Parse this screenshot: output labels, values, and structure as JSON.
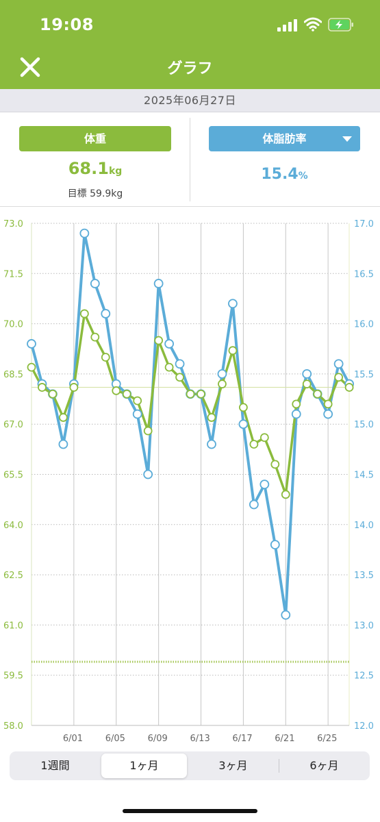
{
  "status": {
    "time": "19:08"
  },
  "nav": {
    "title": "グラフ"
  },
  "date": "2025年06月27日",
  "weight": {
    "label": "体重",
    "value": "68.1",
    "unit": "kg",
    "goal": "目標 59.9kg"
  },
  "body_fat": {
    "label": "体脂肪率",
    "value": "15.4",
    "unit": "%"
  },
  "colors": {
    "green": "#8bbb3d",
    "blue": "#5bacd8"
  },
  "tabs": [
    {
      "label": "1週間",
      "active": false
    },
    {
      "label": "1ヶ月",
      "active": true
    },
    {
      "label": "3ヶ月",
      "active": false
    },
    {
      "label": "6ヶ月",
      "active": false
    }
  ],
  "chart_data": {
    "type": "line",
    "x_tick_labels": [
      "6/01",
      "6/05",
      "6/09",
      "6/13",
      "6/17",
      "6/21",
      "6/25"
    ],
    "left_axis": {
      "ticks": [
        "73.0",
        "71.5",
        "70.0",
        "68.5",
        "67.0",
        "65.5",
        "64.0",
        "62.5",
        "61.0",
        "59.5",
        "58.0"
      ],
      "ylim": [
        58.0,
        73.0
      ]
    },
    "right_axis": {
      "ticks": [
        "17.0",
        "16.5",
        "16.0",
        "15.5",
        "15.0",
        "14.5",
        "14.0",
        "13.5",
        "13.0",
        "12.5",
        "12.0"
      ],
      "ylim": [
        12.0,
        17.0
      ]
    },
    "x_days": [
      28,
      29,
      30,
      31,
      32,
      33,
      34,
      35,
      36,
      37,
      38,
      39,
      40,
      41,
      42,
      43,
      44,
      45,
      46,
      47,
      48,
      49,
      50,
      51,
      52,
      53,
      54,
      55,
      56,
      57,
      58
    ],
    "series": [
      {
        "color": "#8bbb3d",
        "axis": "left",
        "values": [
          68.7,
          68.1,
          67.9,
          67.2,
          68.1,
          70.3,
          69.6,
          69.0,
          68.0,
          67.9,
          67.7,
          66.8,
          69.5,
          68.7,
          68.4,
          67.9,
          67.9,
          67.2,
          68.2,
          69.2,
          67.5,
          66.4,
          66.6,
          65.8,
          64.9,
          67.6,
          68.2,
          67.9,
          67.6,
          68.4,
          68.1
        ]
      },
      {
        "color": "#5bacd8",
        "axis": "right",
        "values": [
          15.8,
          15.4,
          15.3,
          14.8,
          15.4,
          16.9,
          16.4,
          16.1,
          15.4,
          15.3,
          15.1,
          14.5,
          16.4,
          15.8,
          15.6,
          15.3,
          15.3,
          14.8,
          15.5,
          16.2,
          15.0,
          14.2,
          14.4,
          13.8,
          13.1,
          15.1,
          15.5,
          15.3,
          15.1,
          15.6,
          15.4
        ]
      }
    ],
    "reference_lines": [
      {
        "axis": "left",
        "value": 68.1,
        "style": "solid"
      },
      {
        "axis": "left",
        "value": 59.9,
        "style": "dotted"
      }
    ]
  }
}
